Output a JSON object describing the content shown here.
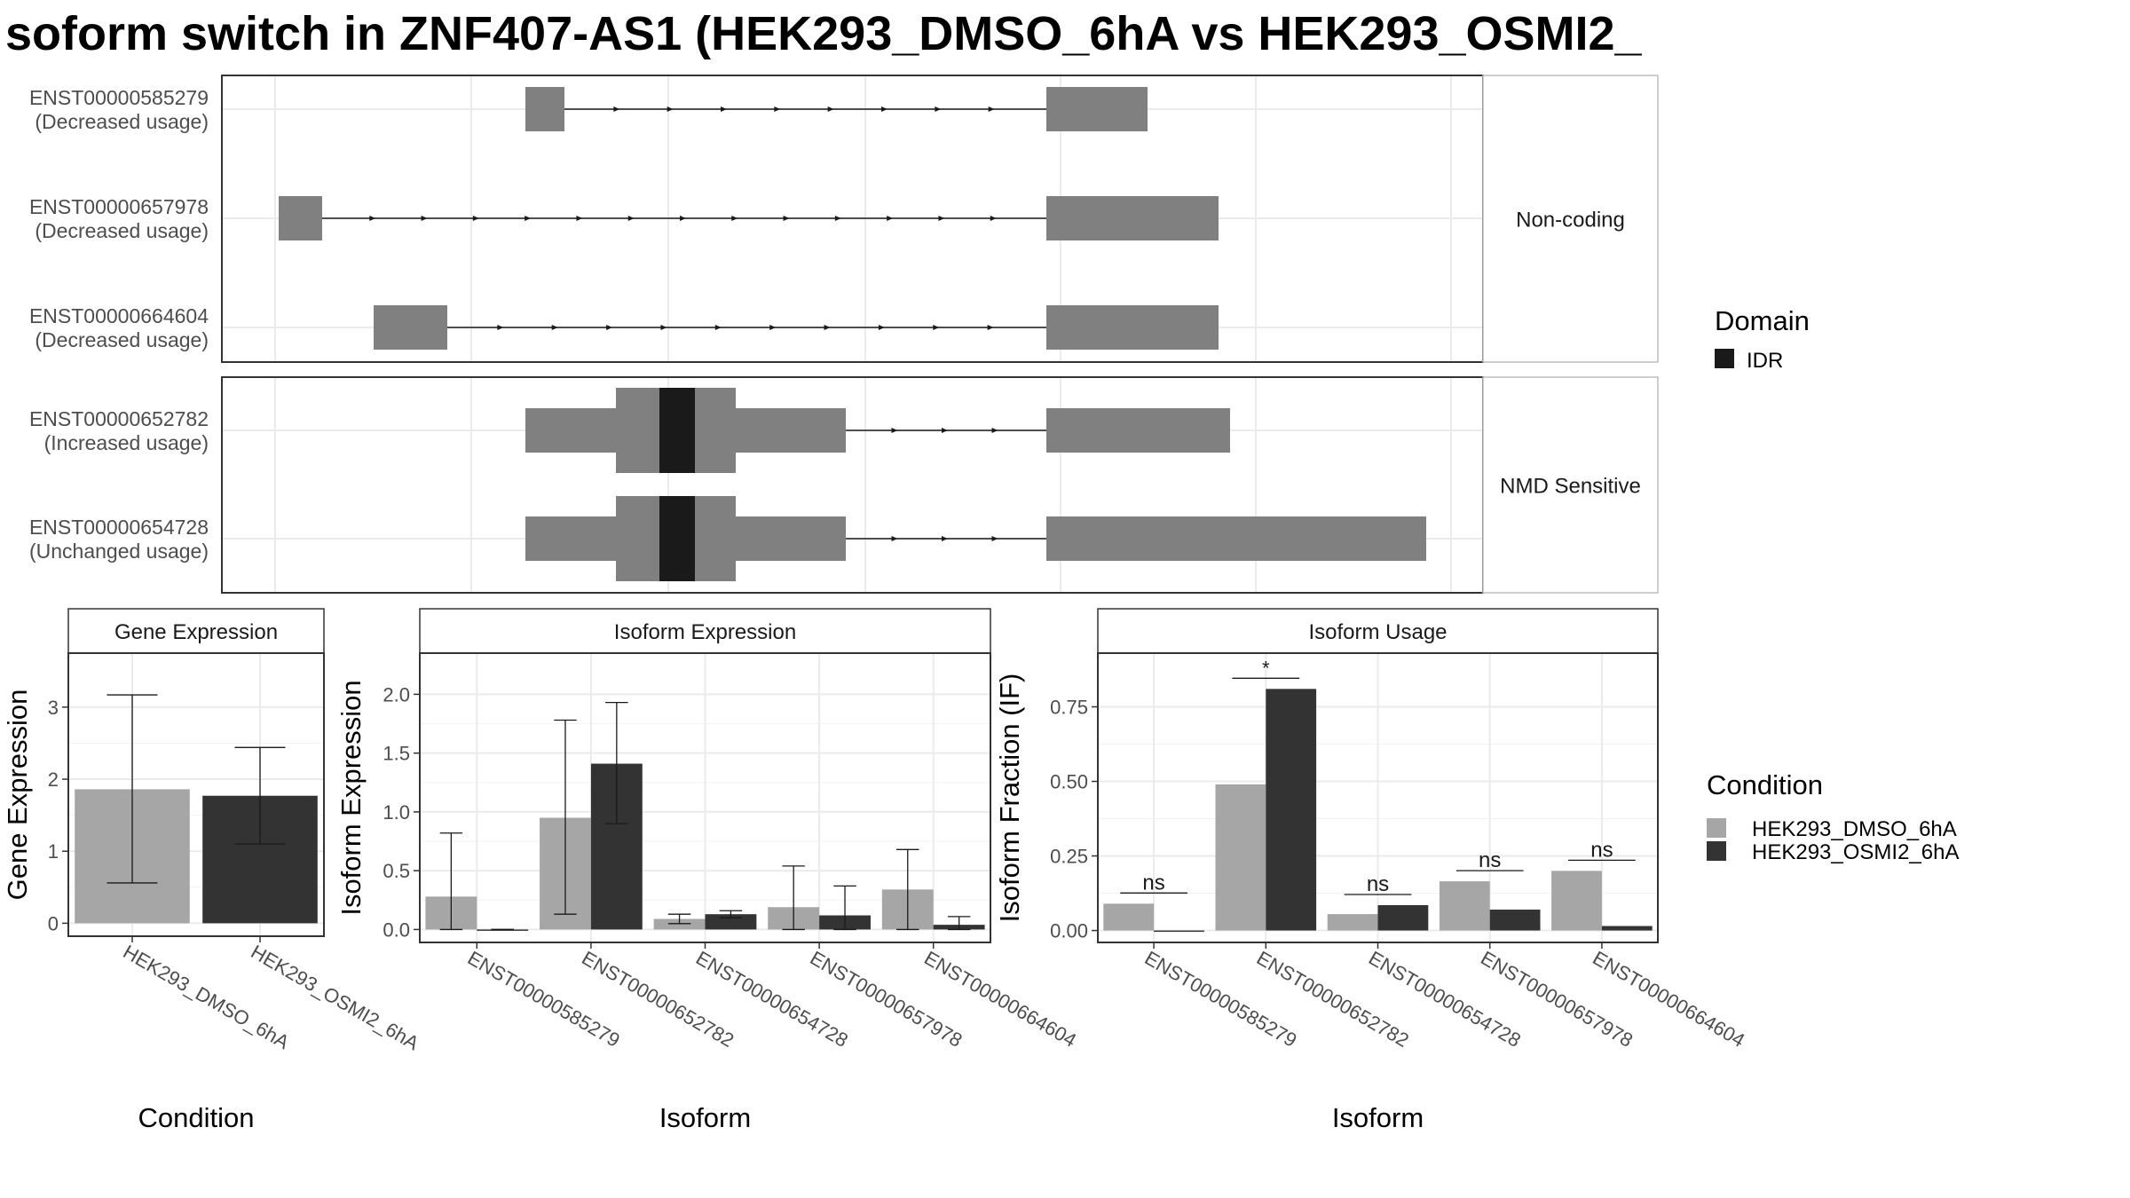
{
  "title": "soform switch in ZNF407-AS1 (HEK293_DMSO_6hA vs HEK293_OSMI2_",
  "colors": {
    "exon": "#808080",
    "domain_idr": "#1a1a1a",
    "dmso": "#a6a6a6",
    "osmi2": "#333333",
    "panel_border": "#333333",
    "strip_border": "#bdbdbd",
    "grid": "#ebebeb",
    "axis_text": "#4d4d4d"
  },
  "structure": {
    "facets": [
      {
        "label": "Non-coding",
        "rows": [
          0,
          1,
          2
        ]
      },
      {
        "label": "NMD Sensitive",
        "rows": [
          3,
          4
        ]
      }
    ],
    "transcripts": [
      {
        "id": "ENST00000585279",
        "usage": "(Decreased usage)"
      },
      {
        "id": "ENST00000657978",
        "usage": "(Decreased usage)"
      },
      {
        "id": "ENST00000664604",
        "usage": "(Decreased usage)"
      },
      {
        "id": "ENST00000652782",
        "usage": "(Increased usage)"
      },
      {
        "id": "ENST00000654728",
        "usage": "(Unchanged usage)"
      }
    ],
    "domain_legend": {
      "title": "Domain",
      "items": [
        "IDR"
      ]
    }
  },
  "chart_data": [
    {
      "type": "bar",
      "title": "Gene Expression",
      "xlabel": "Condition",
      "ylabel": "Gene Expression",
      "categories": [
        "HEK293_DMSO_6hA",
        "HEK293_OSMI2_6hA"
      ],
      "values": [
        1.86,
        1.77
      ],
      "error_bars": [
        [
          0.56,
          3.17
        ],
        [
          1.1,
          2.44
        ]
      ],
      "yticks": [
        "0",
        "1",
        "2",
        "3"
      ],
      "ylim": [
        -0.18,
        3.75
      ],
      "grid": true
    },
    {
      "type": "bar",
      "title": "Isoform Expression",
      "xlabel": "Isoform",
      "ylabel": "Isoform Expression",
      "categories": [
        "ENST00000585279",
        "ENST00000652782",
        "ENST00000654728",
        "ENST00000657978",
        "ENST00000664604"
      ],
      "series": [
        {
          "name": "HEK293_DMSO_6hA",
          "values": [
            0.28,
            0.95,
            0.09,
            0.19,
            0.34
          ],
          "error_bars": [
            [
              0.0,
              0.82
            ],
            [
              0.13,
              1.78
            ],
            [
              0.05,
              0.13
            ],
            [
              0.0,
              0.54
            ],
            [
              0.0,
              0.68
            ]
          ]
        },
        {
          "name": "HEK293_OSMI2_6hA",
          "values": [
            0.0,
            1.41,
            0.13,
            0.12,
            0.04
          ],
          "error_bars": [
            [
              0.0,
              0.0
            ],
            [
              0.9,
              1.93
            ],
            [
              0.1,
              0.16
            ],
            [
              0.0,
              0.37
            ],
            [
              0.0,
              0.11
            ]
          ]
        }
      ],
      "yticks": [
        "0.0",
        "0.5",
        "1.0",
        "1.5",
        "2.0"
      ],
      "ylim": [
        -0.11,
        2.35
      ],
      "grid": true
    },
    {
      "type": "bar",
      "title": "Isoform Usage",
      "xlabel": "Isoform",
      "ylabel": "Isoform Fraction (IF)",
      "categories": [
        "ENST00000585279",
        "ENST00000652782",
        "ENST00000654728",
        "ENST00000657978",
        "ENST00000664604"
      ],
      "series": [
        {
          "name": "HEK293_DMSO_6hA",
          "values": [
            0.09,
            0.49,
            0.055,
            0.165,
            0.2
          ]
        },
        {
          "name": "HEK293_OSMI2_6hA",
          "values": [
            0.0,
            0.81,
            0.085,
            0.07,
            0.015
          ]
        }
      ],
      "significance": [
        "ns",
        "*",
        "ns",
        "ns",
        "ns"
      ],
      "yticks": [
        "0.00",
        "0.25",
        "0.50",
        "0.75"
      ],
      "ylim": [
        -0.04,
        0.93
      ],
      "grid": true
    }
  ],
  "condition_legend": {
    "title": "Condition",
    "items": [
      "HEK293_DMSO_6hA",
      "HEK293_OSMI2_6hA"
    ]
  }
}
